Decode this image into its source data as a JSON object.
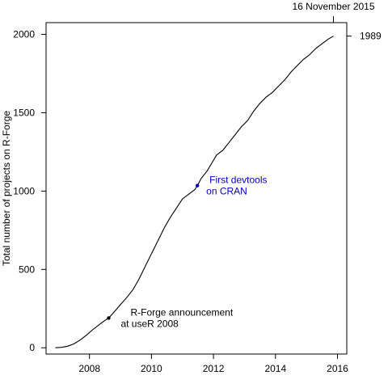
{
  "chart_data": {
    "type": "line",
    "title": "",
    "xlabel": "",
    "ylabel": "Total number of projects on R-Forge",
    "xlim": [
      2006.6,
      2016.3
    ],
    "ylim": [
      -40,
      2075
    ],
    "x_ticks": [
      2008,
      2010,
      2012,
      2014,
      2016
    ],
    "y_ticks": [
      0,
      500,
      1000,
      1500,
      2000
    ],
    "grid": false,
    "line_color": "#000000",
    "series": [
      {
        "x": [
          2006.9,
          2007.1,
          2007.3,
          2007.5,
          2007.7,
          2007.9,
          2008.1,
          2008.3,
          2008.5,
          2008.62,
          2008.8,
          2009.0,
          2009.2,
          2009.4,
          2009.6,
          2009.8,
          2010.0,
          2010.2,
          2010.4,
          2010.6,
          2010.8,
          2011.0,
          2011.2,
          2011.4,
          2011.48,
          2011.6,
          2011.8,
          2011.95,
          2012.1,
          2012.3,
          2012.5,
          2012.7,
          2012.9,
          2013.1,
          2013.3,
          2013.5,
          2013.7,
          2013.9,
          2014.1,
          2014.3,
          2014.5,
          2014.7,
          2014.9,
          2015.1,
          2015.3,
          2015.5,
          2015.7,
          2015.87
        ],
        "y": [
          0,
          3,
          10,
          25,
          50,
          80,
          115,
          145,
          175,
          190,
          230,
          275,
          320,
          370,
          440,
          520,
          600,
          680,
          760,
          830,
          890,
          950,
          980,
          1010,
          1035,
          1080,
          1130,
          1180,
          1230,
          1260,
          1310,
          1360,
          1410,
          1450,
          1510,
          1560,
          1600,
          1630,
          1670,
          1710,
          1760,
          1800,
          1840,
          1870,
          1910,
          1940,
          1970,
          1989
        ]
      }
    ],
    "annotations": [
      {
        "text": "R-Forge announcement",
        "x": 2008.62,
        "y": 190,
        "color": "#000000"
      },
      {
        "text": "at useR 2008",
        "x": 2008.62,
        "y": 190,
        "color": "#000000"
      },
      {
        "text": "First devtools",
        "x": 2011.48,
        "y": 1035,
        "color": "#0000cc"
      },
      {
        "text": "on CRAN",
        "x": 2011.48,
        "y": 1035,
        "color": "#0000cc"
      },
      {
        "text": "16 November 2015",
        "x": 2015.87,
        "y": 1989,
        "color": "#000000"
      },
      {
        "text": "1989",
        "x": 2015.87,
        "y": 1989,
        "color": "#000000"
      }
    ]
  }
}
